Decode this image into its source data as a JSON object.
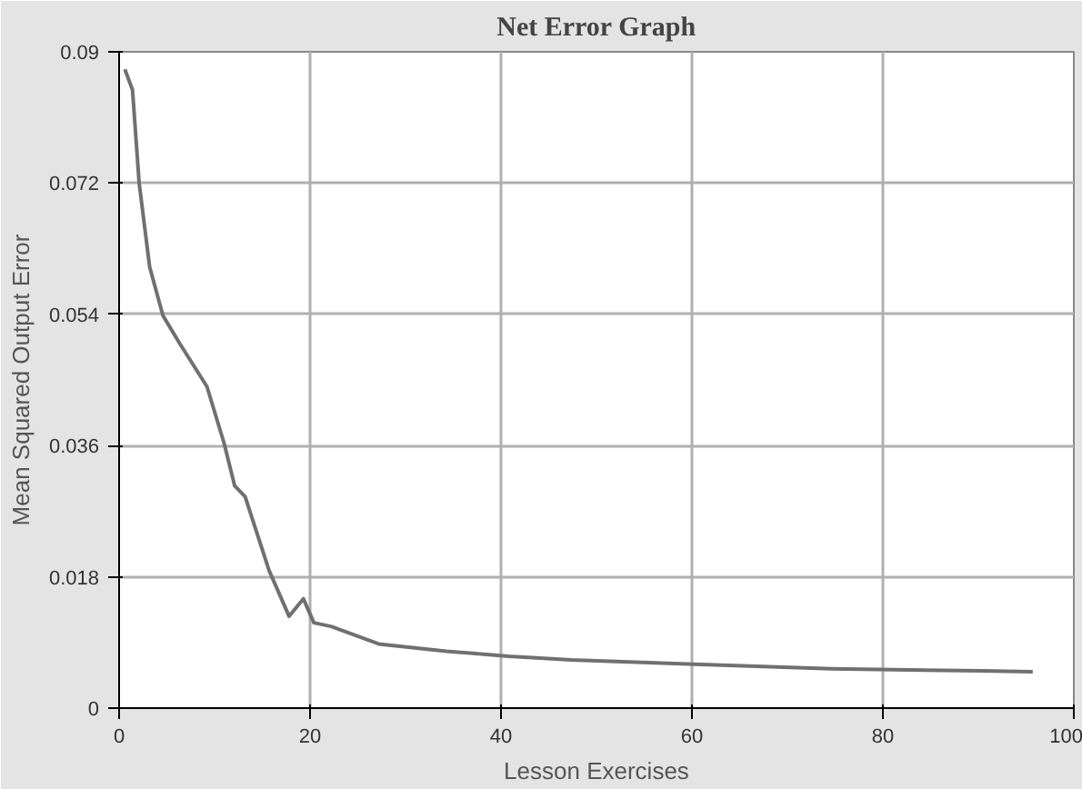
{
  "chart_data": {
    "type": "line",
    "title": "Net Error Graph",
    "xlabel": "Lesson Exercises",
    "ylabel": "Mean Squared Output Error",
    "x": [
      0.6,
      1.4,
      2.1,
      3.2,
      4.6,
      6.4,
      9.2,
      11.0,
      12.1,
      13.2,
      15.7,
      17.8,
      19.3,
      20.4,
      22.2,
      27.2,
      34.3,
      40.8,
      47.4,
      60.3,
      74.6,
      90.4,
      95.7
    ],
    "series": [
      {
        "color": "#707070",
        "values": [
          0.0876,
          0.0848,
          0.072,
          0.0605,
          0.0538,
          0.0499,
          0.0441,
          0.0363,
          0.0305,
          0.029,
          0.0189,
          0.0126,
          0.015,
          0.0117,
          0.0112,
          0.0088,
          0.0078,
          0.0071,
          0.0066,
          0.006,
          0.0054,
          0.0051,
          0.005
        ]
      }
    ],
    "xlim": [
      0,
      100
    ],
    "ylim": [
      0,
      0.09
    ],
    "xticks": [
      0,
      20,
      40,
      60,
      80,
      100
    ],
    "yticks": [
      0,
      0.018,
      0.036,
      0.054,
      0.072,
      0.09
    ],
    "grid": true
  }
}
